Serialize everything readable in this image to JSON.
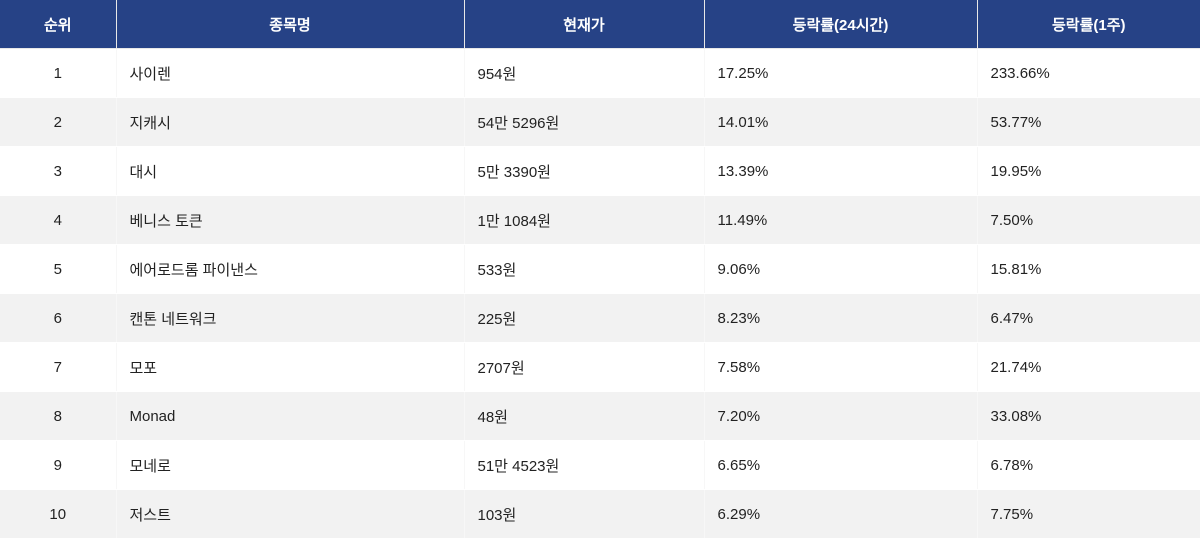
{
  "headers": [
    "순위",
    "종목명",
    "현재가",
    "등락률(24시간)",
    "등락률(1주)"
  ],
  "rows": [
    {
      "rank": "1",
      "name": "사이렌",
      "price": "954원",
      "change_24h": "17.25%",
      "change_1w": "233.66%"
    },
    {
      "rank": "2",
      "name": "지캐시",
      "price": "54만 5296원",
      "change_24h": "14.01%",
      "change_1w": "53.77%"
    },
    {
      "rank": "3",
      "name": "대시",
      "price": "5만 3390원",
      "change_24h": "13.39%",
      "change_1w": "19.95%"
    },
    {
      "rank": "4",
      "name": "베니스 토큰",
      "price": "1만 1084원",
      "change_24h": "11.49%",
      "change_1w": "7.50%"
    },
    {
      "rank": "5",
      "name": "에어로드롬 파이낸스",
      "price": "533원",
      "change_24h": "9.06%",
      "change_1w": "15.81%"
    },
    {
      "rank": "6",
      "name": "캔톤 네트워크",
      "price": "225원",
      "change_24h": "8.23%",
      "change_1w": "6.47%"
    },
    {
      "rank": "7",
      "name": "모포",
      "price": "2707원",
      "change_24h": "7.58%",
      "change_1w": "21.74%"
    },
    {
      "rank": "8",
      "name": "Monad",
      "price": "48원",
      "change_24h": "7.20%",
      "change_1w": "33.08%"
    },
    {
      "rank": "9",
      "name": "모네로",
      "price": "51만 4523원",
      "change_24h": "6.65%",
      "change_1w": "6.78%"
    },
    {
      "rank": "10",
      "name": "저스트",
      "price": "103원",
      "change_24h": "6.29%",
      "change_1w": "7.75%"
    }
  ]
}
